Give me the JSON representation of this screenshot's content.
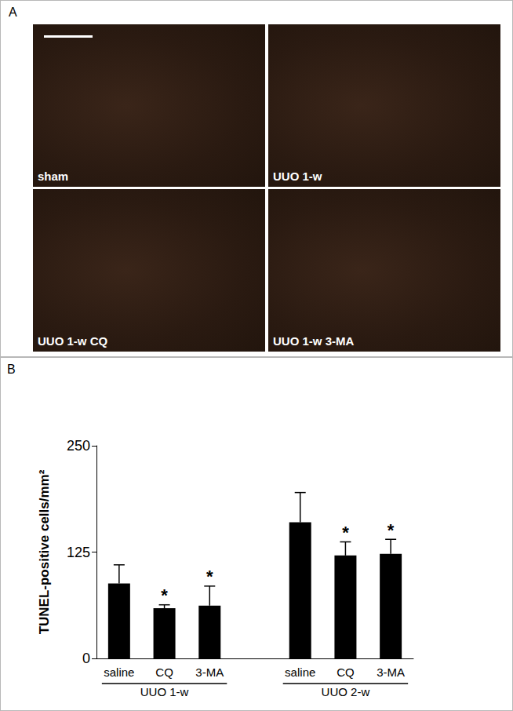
{
  "panel_a": {
    "letter": "A",
    "images": [
      "sham",
      "UUO 1-w",
      "UUO 1-w CQ",
      "UUO 1-w 3-MA"
    ]
  },
  "chart_data": {
    "panel_letter": "B",
    "type": "bar",
    "categories": [
      "saline",
      "CQ",
      "3-MA",
      null,
      "saline",
      "CQ",
      "3-MA"
    ],
    "group": [
      "UUO 1-w",
      "UUO 1-w",
      "UUO 1-w",
      null,
      "UUO 2-w",
      "UUO 2-w",
      "UUO 2-w"
    ],
    "values": [
      88,
      59,
      62,
      null,
      160,
      121,
      123
    ],
    "error": [
      22,
      4,
      23,
      null,
      35,
      16,
      17
    ],
    "annotations": [
      null,
      "*",
      "*",
      null,
      null,
      "*",
      "*"
    ],
    "color": "#000000",
    "ylabel": "TUNEL-positive cells/mm²",
    "ylim": [
      0,
      250
    ],
    "yticks": [
      0,
      125,
      250
    ],
    "grid": false
  }
}
